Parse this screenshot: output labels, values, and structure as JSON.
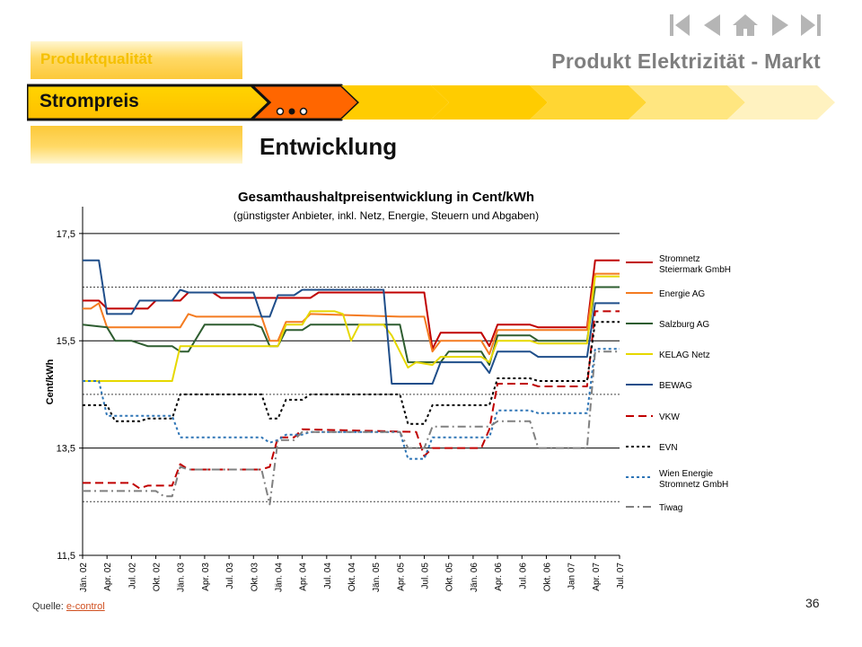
{
  "header": {
    "app_title": "Produkt Elektrizität - Markt",
    "tab_quality": "Produktqualität",
    "breadcrumb": "Strompreis",
    "page_title": "Entwicklung",
    "nav_icons": [
      "first-page-icon",
      "previous-page-icon",
      "home-icon",
      "next-page-icon",
      "last-page-icon"
    ]
  },
  "colors": {
    "accent": "#ffcc00",
    "accent_light": "#ffe38a",
    "orange": "#ff6600",
    "nav_grey": "#b5b5b5",
    "title_grey": "#7f7f7f"
  },
  "chart_data": {
    "type": "line",
    "title": "Gesamthaushaltpreisentwicklung in Cent/kWh",
    "subtitle": "(günstigster Anbieter, inkl. Netz, Energie, Steuern und Abgaben)",
    "xlabel": "",
    "ylabel": "Cent/kWh",
    "ylim": [
      11.5,
      18.0
    ],
    "yticks": [
      11.5,
      13.5,
      15.5,
      17.5
    ],
    "ytick_labels": [
      "11,5",
      "13,5",
      "15,5",
      "17,5"
    ],
    "solid_gridlines": [
      13.5,
      15.5,
      17.5
    ],
    "dotted_gridlines": [
      12.5,
      14.5,
      16.5
    ],
    "x_range": [
      0,
      66
    ],
    "xticks": [
      0,
      3,
      6,
      9,
      12,
      15,
      18,
      21,
      24,
      27,
      30,
      33,
      36,
      39,
      42,
      45,
      48,
      51,
      54,
      57,
      60,
      63,
      66
    ],
    "xtick_labels": [
      "Jän. 02",
      "Apr. 02",
      "Jul. 02",
      "Okt. 02",
      "Jän. 03",
      "Apr. 03",
      "Jul. 03",
      "Okt. 03",
      "Jän. 04",
      "Apr. 04",
      "Jul. 04",
      "Okt. 04",
      "Jän. 05",
      "Apr. 05",
      "Jul. 05",
      "Okt. 05",
      "Jän. 06",
      "Apr. 06",
      "Jul. 06",
      "Okt. 06",
      "Jan 07",
      "Apr. 07",
      "Jul. 07"
    ],
    "legend_position": "right",
    "series": [
      {
        "name": "Stromnetz Steiermark GmbH",
        "color": "#c00000",
        "dash": "solid",
        "points": [
          [
            0,
            16.25
          ],
          [
            2,
            16.25
          ],
          [
            3,
            16.1
          ],
          [
            8,
            16.1
          ],
          [
            9,
            16.25
          ],
          [
            12,
            16.25
          ],
          [
            13,
            16.4
          ],
          [
            16,
            16.4
          ],
          [
            17,
            16.3
          ],
          [
            25,
            16.3
          ],
          [
            26,
            16.3
          ],
          [
            28,
            16.3
          ],
          [
            29,
            16.4
          ],
          [
            40,
            16.4
          ],
          [
            42,
            16.4
          ],
          [
            43,
            15.35
          ],
          [
            44,
            15.65
          ],
          [
            49,
            15.65
          ],
          [
            50,
            15.4
          ],
          [
            51,
            15.8
          ],
          [
            55,
            15.8
          ],
          [
            56,
            15.75
          ],
          [
            62,
            15.75
          ],
          [
            63,
            17.0
          ],
          [
            72,
            17.0
          ]
        ]
      },
      {
        "name": "Energie AG",
        "color": "#f47b20",
        "dash": "solid",
        "points": [
          [
            0,
            16.1
          ],
          [
            1,
            16.1
          ],
          [
            2,
            16.2
          ],
          [
            3,
            15.75
          ],
          [
            10,
            15.75
          ],
          [
            12,
            15.75
          ],
          [
            13,
            16.0
          ],
          [
            14,
            15.95
          ],
          [
            22,
            15.95
          ],
          [
            23,
            15.5
          ],
          [
            24,
            15.5
          ],
          [
            25,
            15.85
          ],
          [
            27,
            15.85
          ],
          [
            28,
            16.0
          ],
          [
            39,
            15.95
          ],
          [
            42,
            15.95
          ],
          [
            43,
            15.3
          ],
          [
            44,
            15.5
          ],
          [
            49,
            15.5
          ],
          [
            50,
            15.25
          ],
          [
            51,
            15.7
          ],
          [
            55,
            15.7
          ],
          [
            56,
            15.7
          ],
          [
            62,
            15.7
          ],
          [
            63,
            16.75
          ],
          [
            72,
            16.75
          ]
        ]
      },
      {
        "name": "Salzburg AG",
        "color": "#2e5d30",
        "dash": "solid",
        "points": [
          [
            0,
            15.8
          ],
          [
            3,
            15.75
          ],
          [
            4,
            15.5
          ],
          [
            6,
            15.5
          ],
          [
            8,
            15.4
          ],
          [
            11,
            15.4
          ],
          [
            12,
            15.3
          ],
          [
            13,
            15.3
          ],
          [
            15,
            15.8
          ],
          [
            21,
            15.8
          ],
          [
            22,
            15.75
          ],
          [
            23,
            15.4
          ],
          [
            24,
            15.4
          ],
          [
            25,
            15.7
          ],
          [
            27,
            15.7
          ],
          [
            28,
            15.8
          ],
          [
            39,
            15.8
          ],
          [
            40,
            15.1
          ],
          [
            44,
            15.1
          ],
          [
            45,
            15.3
          ],
          [
            49,
            15.3
          ],
          [
            50,
            15.05
          ],
          [
            51,
            15.6
          ],
          [
            55,
            15.6
          ],
          [
            56,
            15.5
          ],
          [
            62,
            15.5
          ],
          [
            63,
            16.5
          ],
          [
            72,
            16.5
          ]
        ]
      },
      {
        "name": "KELAG Netz",
        "color": "#e6d800",
        "dash": "solid",
        "points": [
          [
            0,
            14.75
          ],
          [
            10,
            14.75
          ],
          [
            11,
            14.75
          ],
          [
            12,
            15.4
          ],
          [
            13,
            15.4
          ],
          [
            14,
            15.4
          ],
          [
            21,
            15.4
          ],
          [
            22,
            15.4
          ],
          [
            23,
            15.4
          ],
          [
            24,
            15.4
          ],
          [
            25,
            15.8
          ],
          [
            27,
            15.8
          ],
          [
            28,
            16.05
          ],
          [
            31,
            16.05
          ],
          [
            32,
            16.0
          ],
          [
            33,
            15.5
          ],
          [
            34,
            15.8
          ],
          [
            37,
            15.8
          ],
          [
            38,
            15.6
          ],
          [
            40,
            15.0
          ],
          [
            41,
            15.1
          ],
          [
            43,
            15.05
          ],
          [
            44,
            15.2
          ],
          [
            49,
            15.2
          ],
          [
            50,
            15.1
          ],
          [
            51,
            15.5
          ],
          [
            55,
            15.5
          ],
          [
            56,
            15.45
          ],
          [
            62,
            15.45
          ],
          [
            63,
            16.7
          ],
          [
            72,
            16.7
          ]
        ]
      },
      {
        "name": "BEWAG",
        "color": "#1f4e8a",
        "dash": "solid",
        "points": [
          [
            0,
            17.0
          ],
          [
            2,
            17.0
          ],
          [
            3,
            16.0
          ],
          [
            6,
            16.0
          ],
          [
            7,
            16.25
          ],
          [
            11,
            16.25
          ],
          [
            12,
            16.45
          ],
          [
            13,
            16.4
          ],
          [
            21,
            16.4
          ],
          [
            22,
            15.95
          ],
          [
            23,
            15.95
          ],
          [
            24,
            16.35
          ],
          [
            26,
            16.35
          ],
          [
            27,
            16.45
          ],
          [
            37,
            16.45
          ],
          [
            38,
            14.7
          ],
          [
            43,
            14.7
          ],
          [
            44,
            15.1
          ],
          [
            49,
            15.1
          ],
          [
            50,
            14.9
          ],
          [
            51,
            15.3
          ],
          [
            55,
            15.3
          ],
          [
            56,
            15.2
          ],
          [
            62,
            15.2
          ],
          [
            63,
            16.2
          ],
          [
            72,
            16.2
          ]
        ]
      },
      {
        "name": "VKW",
        "color": "#c00000",
        "dash": "dashed",
        "points": [
          [
            0,
            12.85
          ],
          [
            6,
            12.85
          ],
          [
            7,
            12.75
          ],
          [
            8,
            12.8
          ],
          [
            11,
            12.8
          ],
          [
            12,
            13.2
          ],
          [
            13,
            13.1
          ],
          [
            22,
            13.1
          ],
          [
            23,
            13.15
          ],
          [
            24,
            13.7
          ],
          [
            26,
            13.7
          ],
          [
            27,
            13.85
          ],
          [
            41,
            13.8
          ],
          [
            42,
            13.35
          ],
          [
            43,
            13.5
          ],
          [
            49,
            13.5
          ],
          [
            50,
            13.85
          ],
          [
            51,
            14.7
          ],
          [
            55,
            14.7
          ],
          [
            56,
            14.65
          ],
          [
            62,
            14.65
          ],
          [
            63,
            16.05
          ],
          [
            72,
            16.05
          ]
        ]
      },
      {
        "name": "EVN",
        "color": "#000000",
        "dash": "dotted",
        "points": [
          [
            0,
            14.3
          ],
          [
            3,
            14.3
          ],
          [
            4,
            14.0
          ],
          [
            7,
            14.0
          ],
          [
            8,
            14.05
          ],
          [
            11,
            14.05
          ],
          [
            12,
            14.5
          ],
          [
            22,
            14.5
          ],
          [
            23,
            14.05
          ],
          [
            24,
            14.05
          ],
          [
            25,
            14.4
          ],
          [
            27,
            14.4
          ],
          [
            28,
            14.5
          ],
          [
            39,
            14.5
          ],
          [
            40,
            13.95
          ],
          [
            42,
            13.95
          ],
          [
            43,
            14.3
          ],
          [
            49,
            14.3
          ],
          [
            50,
            14.3
          ],
          [
            51,
            14.8
          ],
          [
            55,
            14.8
          ],
          [
            56,
            14.75
          ],
          [
            62,
            14.75
          ],
          [
            63,
            15.85
          ],
          [
            72,
            15.85
          ]
        ]
      },
      {
        "name": "Wien Energie Stromnetz GmbH",
        "color": "#2e75b6",
        "dash": "dotted",
        "points": [
          [
            0,
            14.75
          ],
          [
            2,
            14.75
          ],
          [
            3,
            14.1
          ],
          [
            11,
            14.1
          ],
          [
            12,
            13.7
          ],
          [
            13,
            13.7
          ],
          [
            14,
            13.7
          ],
          [
            22,
            13.7
          ],
          [
            23,
            13.6
          ],
          [
            24,
            13.65
          ],
          [
            25,
            13.75
          ],
          [
            27,
            13.75
          ],
          [
            28,
            13.8
          ],
          [
            39,
            13.8
          ],
          [
            40,
            13.3
          ],
          [
            42,
            13.3
          ],
          [
            43,
            13.7
          ],
          [
            49,
            13.7
          ],
          [
            50,
            13.7
          ],
          [
            51,
            14.2
          ],
          [
            55,
            14.2
          ],
          [
            56,
            14.15
          ],
          [
            62,
            14.15
          ],
          [
            63,
            15.35
          ],
          [
            72,
            15.35
          ]
        ]
      },
      {
        "name": "Tiwag",
        "color": "#808080",
        "dash": "dashdot",
        "points": [
          [
            0,
            12.7
          ],
          [
            6,
            12.7
          ],
          [
            9,
            12.7
          ],
          [
            10,
            12.6
          ],
          [
            11,
            12.6
          ],
          [
            12,
            13.15
          ],
          [
            13,
            13.1
          ],
          [
            22,
            13.1
          ],
          [
            23,
            12.45
          ],
          [
            24,
            13.65
          ],
          [
            26,
            13.65
          ],
          [
            27,
            13.8
          ],
          [
            39,
            13.8
          ],
          [
            40,
            13.5
          ],
          [
            42,
            13.5
          ],
          [
            43,
            13.9
          ],
          [
            49,
            13.9
          ],
          [
            50,
            13.9
          ],
          [
            51,
            14.0
          ],
          [
            55,
            14.0
          ],
          [
            56,
            13.5
          ],
          [
            62,
            13.5
          ],
          [
            63,
            15.3
          ],
          [
            72,
            15.3
          ]
        ]
      }
    ]
  },
  "footer": {
    "source_label": "Quelle:",
    "source_link": "e-control",
    "page_number": "36"
  }
}
